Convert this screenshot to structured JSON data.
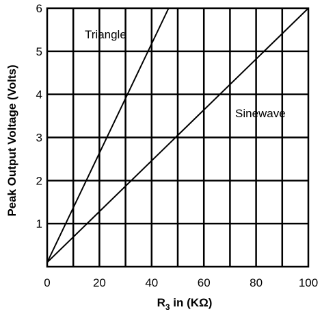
{
  "chart_data": {
    "type": "line",
    "title": "",
    "xlabel": "R",
    "xlabel_sub": "3",
    "xlabel_rest": " in (KΩ)",
    "ylabel": "Peak Output Voltage (Volts)",
    "xlim": [
      0,
      100
    ],
    "ylim": [
      0,
      6
    ],
    "xticks": [
      0,
      20,
      40,
      60,
      80,
      100
    ],
    "yticks": [
      1,
      2,
      3,
      4,
      5,
      6
    ],
    "x_minor_step": 10,
    "grid": true,
    "legend": "none",
    "series": [
      {
        "name": "Triangle",
        "x": [
          0,
          46.5
        ],
        "y": [
          0.1,
          6
        ]
      },
      {
        "name": "Sinewave",
        "x": [
          0,
          100
        ],
        "y": [
          0.1,
          6
        ]
      }
    ]
  }
}
